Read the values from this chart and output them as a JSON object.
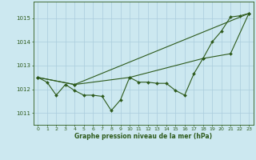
{
  "title": "Graphe pression niveau de la mer (hPa)",
  "bg_color": "#cce8f0",
  "grid_color": "#aaccdd",
  "line_color": "#2d5a1b",
  "xlim": [
    -0.5,
    23.5
  ],
  "ylim": [
    1010.5,
    1015.7
  ],
  "yticks": [
    1011,
    1012,
    1013,
    1014,
    1015
  ],
  "xticks": [
    0,
    1,
    2,
    3,
    4,
    5,
    6,
    7,
    8,
    9,
    10,
    11,
    12,
    13,
    14,
    15,
    16,
    17,
    18,
    19,
    20,
    21,
    22,
    23
  ],
  "series1": {
    "x": [
      0,
      1,
      2,
      3,
      4,
      5,
      6,
      7,
      8,
      9,
      10,
      11,
      12,
      13,
      14,
      15,
      16,
      17,
      18,
      19,
      20,
      21,
      22,
      23
    ],
    "y": [
      1012.5,
      1012.3,
      1011.75,
      1012.2,
      1011.95,
      1011.75,
      1011.75,
      1011.7,
      1011.1,
      1011.55,
      1012.5,
      1012.3,
      1012.3,
      1012.25,
      1012.25,
      1011.95,
      1011.75,
      1012.65,
      1013.3,
      1014.0,
      1014.45,
      1015.05,
      1015.1,
      1015.2
    ]
  },
  "series2": {
    "x": [
      0,
      4,
      23
    ],
    "y": [
      1012.5,
      1012.2,
      1015.2
    ]
  },
  "series3": {
    "x": [
      0,
      4,
      10,
      18,
      21,
      23
    ],
    "y": [
      1012.5,
      1012.2,
      1012.5,
      1013.3,
      1013.5,
      1015.2
    ]
  }
}
